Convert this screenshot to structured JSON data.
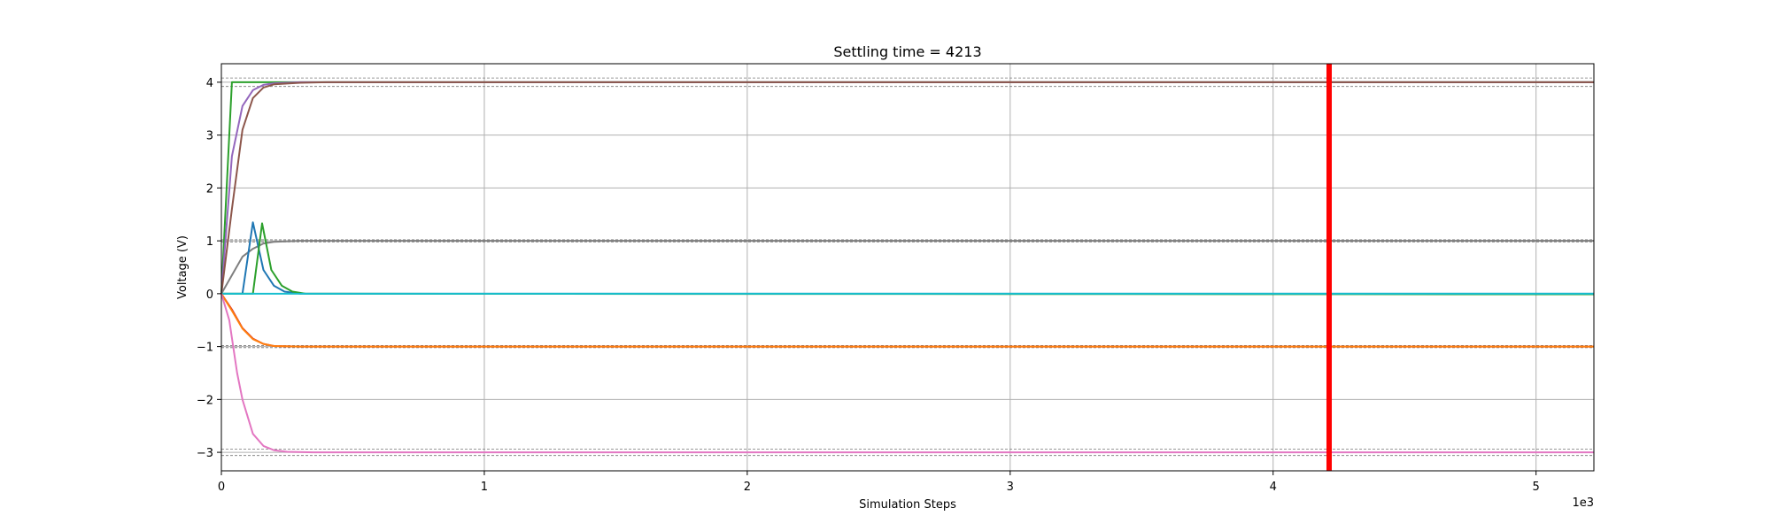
{
  "chart_data": {
    "type": "line",
    "title": "Settling time = 4213",
    "xlabel": "Simulation Steps",
    "ylabel": "Voltage (V)",
    "x_offset_label": "1e3",
    "xlim": [
      0,
      5.22
    ],
    "ylim": [
      -3.35,
      4.35
    ],
    "xticks": [
      0,
      1,
      2,
      3,
      4,
      5
    ],
    "xtick_labels": [
      "0",
      "1",
      "2",
      "3",
      "4",
      "5"
    ],
    "yticks": [
      -3,
      -2,
      -1,
      0,
      1,
      2,
      3,
      4
    ],
    "ytick_labels": [
      "−3",
      "−2",
      "−1",
      "0",
      "1",
      "2",
      "3",
      "4"
    ],
    "grid": true,
    "settling_marker": {
      "x": 4.213,
      "color": "#ff0000"
    },
    "tolerance_bands": [
      3.92,
      4.08,
      0.98,
      1.02,
      -0.98,
      -1.02,
      -2.94,
      -3.06
    ],
    "series": [
      {
        "color": "#2ca02c",
        "points": [
          [
            0,
            0
          ],
          [
            0.04,
            4.0
          ],
          [
            5.22,
            4.0
          ]
        ]
      },
      {
        "color": "#9467bd",
        "points": [
          [
            0,
            0
          ],
          [
            0.04,
            2.6
          ],
          [
            0.08,
            3.55
          ],
          [
            0.12,
            3.85
          ],
          [
            0.16,
            3.95
          ],
          [
            0.2,
            3.98
          ],
          [
            0.3,
            4.0
          ],
          [
            5.22,
            4.0
          ]
        ]
      },
      {
        "color": "#8c564b",
        "points": [
          [
            0,
            0
          ],
          [
            0.04,
            1.6
          ],
          [
            0.08,
            3.1
          ],
          [
            0.12,
            3.7
          ],
          [
            0.16,
            3.9
          ],
          [
            0.2,
            3.96
          ],
          [
            0.3,
            3.99
          ],
          [
            0.4,
            4.0
          ],
          [
            5.22,
            4.0
          ]
        ]
      },
      {
        "color": "#7f7f7f",
        "points": [
          [
            0,
            0
          ],
          [
            0.04,
            0.35
          ],
          [
            0.08,
            0.7
          ],
          [
            0.12,
            0.85
          ],
          [
            0.16,
            0.95
          ],
          [
            0.2,
            0.98
          ],
          [
            0.3,
            1.0
          ],
          [
            5.22,
            1.0
          ]
        ]
      },
      {
        "color": "#1f77b4",
        "points": [
          [
            0,
            0
          ],
          [
            0.08,
            0
          ],
          [
            0.12,
            1.35
          ],
          [
            0.16,
            0.45
          ],
          [
            0.2,
            0.15
          ],
          [
            0.24,
            0.04
          ],
          [
            0.3,
            0
          ],
          [
            5.22,
            0
          ]
        ]
      },
      {
        "color": "#2ca02c",
        "points": [
          [
            0,
            0
          ],
          [
            0.12,
            0
          ],
          [
            0.155,
            1.33
          ],
          [
            0.19,
            0.45
          ],
          [
            0.23,
            0.15
          ],
          [
            0.27,
            0.04
          ],
          [
            0.32,
            0
          ],
          [
            5.22,
            -0.01
          ]
        ]
      },
      {
        "color": "#17becf",
        "points": [
          [
            0,
            0
          ],
          [
            5.22,
            0
          ]
        ]
      },
      {
        "color": "#d62728",
        "points": [
          [
            0,
            0
          ],
          [
            0.04,
            -0.3
          ],
          [
            0.08,
            -0.65
          ],
          [
            0.12,
            -0.85
          ],
          [
            0.16,
            -0.95
          ],
          [
            0.2,
            -0.99
          ],
          [
            0.3,
            -1.0
          ],
          [
            5.22,
            -1.0
          ]
        ]
      },
      {
        "color": "#ff7f0e",
        "points": [
          [
            0,
            0
          ],
          [
            0.04,
            -0.32
          ],
          [
            0.08,
            -0.66
          ],
          [
            0.12,
            -0.86
          ],
          [
            0.16,
            -0.95
          ],
          [
            0.2,
            -0.99
          ],
          [
            0.3,
            -1.0
          ],
          [
            5.22,
            -1.0
          ]
        ]
      },
      {
        "color": "#e377c2",
        "points": [
          [
            0,
            0
          ],
          [
            0.03,
            -0.5
          ],
          [
            0.06,
            -1.5
          ],
          [
            0.08,
            -2.0
          ],
          [
            0.12,
            -2.65
          ],
          [
            0.16,
            -2.88
          ],
          [
            0.2,
            -2.96
          ],
          [
            0.25,
            -2.99
          ],
          [
            0.35,
            -3.0
          ],
          [
            5.22,
            -3.0
          ]
        ]
      }
    ]
  }
}
